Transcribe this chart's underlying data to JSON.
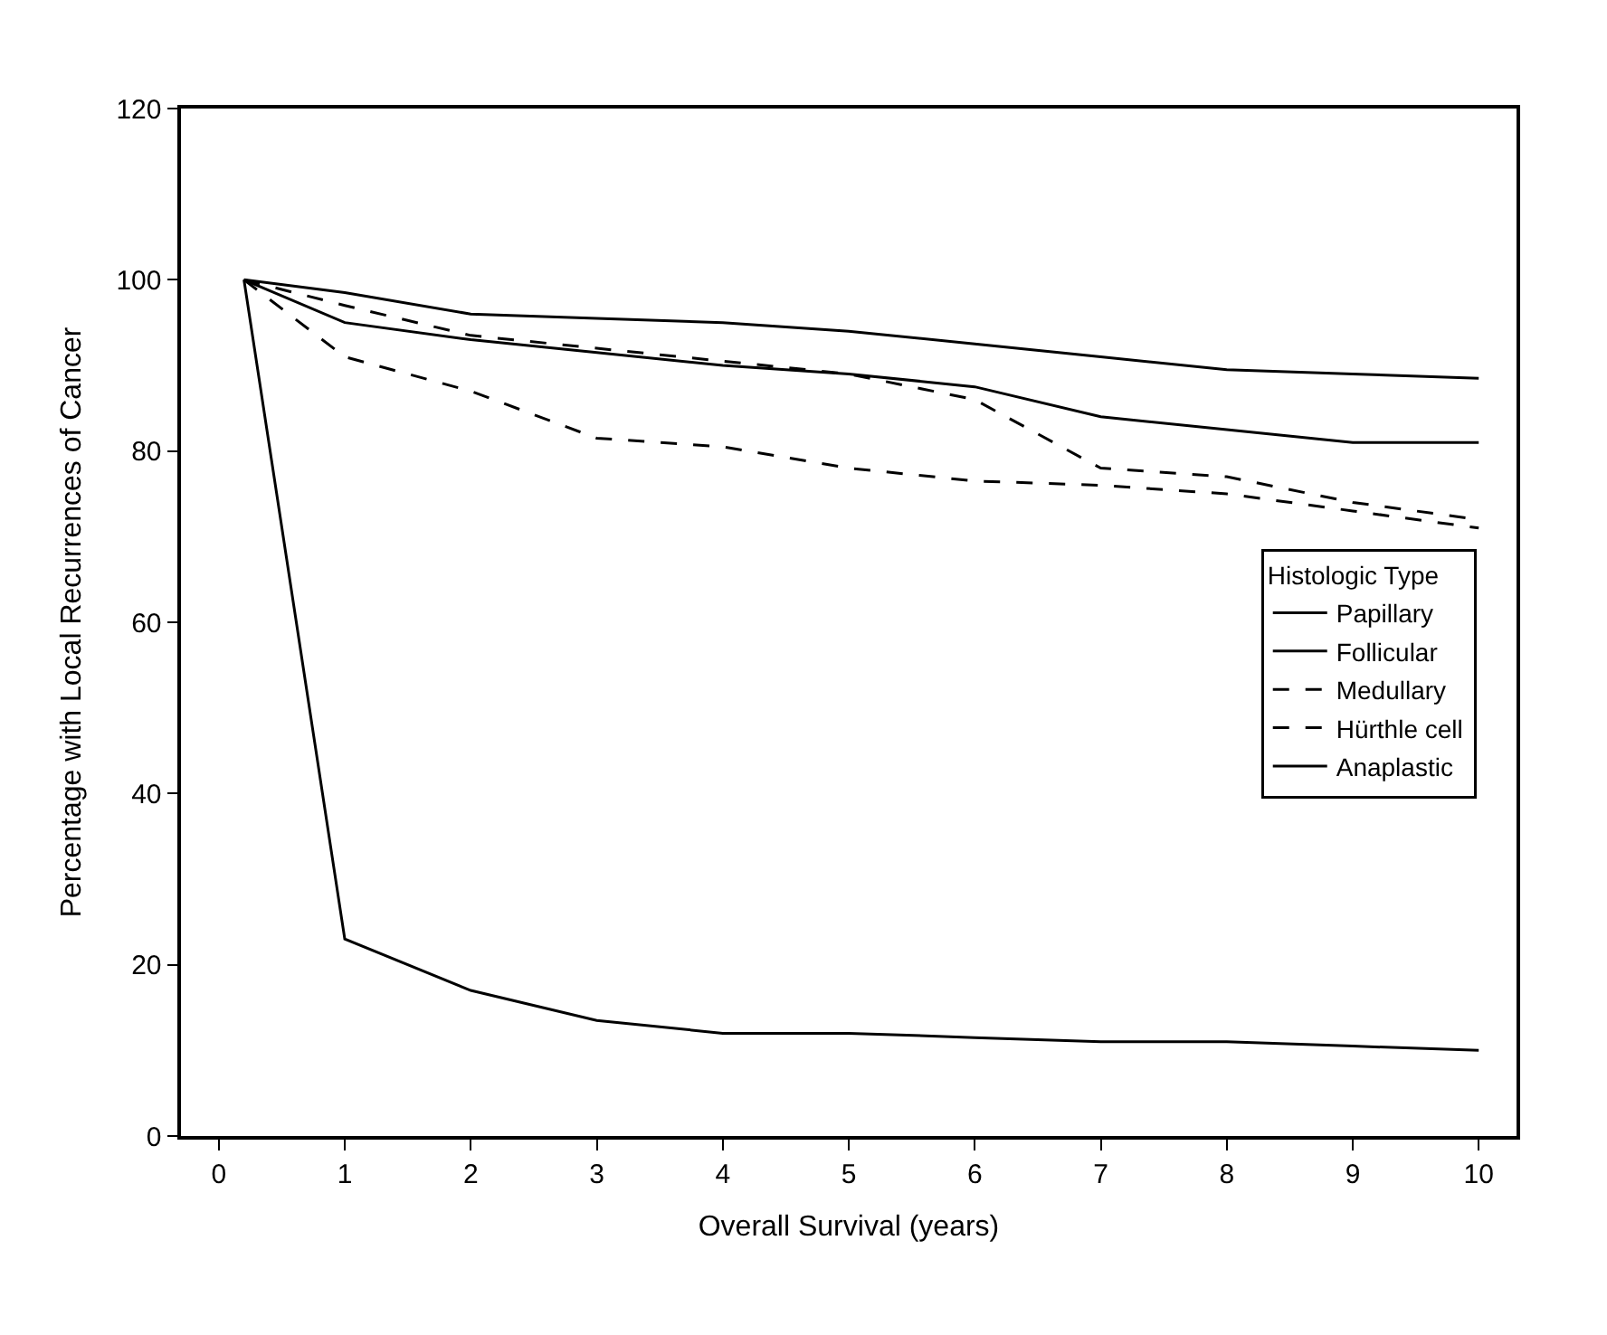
{
  "chart_data": {
    "type": "line",
    "xlabel": "Overall Survival (years)",
    "ylabel": "Percentage with Local Recurrences of Cancer",
    "legend_title": "Histologic Type",
    "legend": "right",
    "marker": "none",
    "xlim": [
      -0.3,
      10.3
    ],
    "ylim": [
      0,
      120
    ],
    "xticks": [
      0,
      1,
      2,
      3,
      4,
      5,
      6,
      7,
      8,
      9,
      10
    ],
    "yticks": [
      0,
      20,
      40,
      60,
      80,
      100,
      120
    ],
    "x": [
      0.2,
      1,
      2,
      3,
      4,
      5,
      6,
      7,
      8,
      9,
      10
    ],
    "series": [
      {
        "name": "Papillary",
        "color": "#000000",
        "line_style": "solid",
        "values": [
          100,
          98.5,
          96,
          95.5,
          95,
          94,
          92.5,
          91,
          89.5,
          89,
          88.5
        ]
      },
      {
        "name": "Follicular",
        "color": "#000000",
        "line_style": "solid",
        "values": [
          100,
          95,
          93,
          91.5,
          90,
          89,
          87.5,
          84,
          82.5,
          81,
          81
        ]
      },
      {
        "name": "Medullary",
        "color": "#000000",
        "line_style": "dashed",
        "values": [
          100,
          91,
          87,
          81.5,
          80.5,
          78,
          76.5,
          76,
          75,
          73,
          71
        ]
      },
      {
        "name": "Hürthle cell",
        "color": "#000000",
        "line_style": "dashed",
        "values": [
          100,
          97,
          93.5,
          92,
          90.5,
          89,
          86,
          78,
          77,
          74,
          72
        ]
      },
      {
        "name": "Anaplastic",
        "color": "#000000",
        "line_style": "solid",
        "values": [
          100,
          23,
          17,
          13.5,
          12,
          12,
          11.5,
          11,
          11,
          10.5,
          10
        ]
      }
    ]
  }
}
